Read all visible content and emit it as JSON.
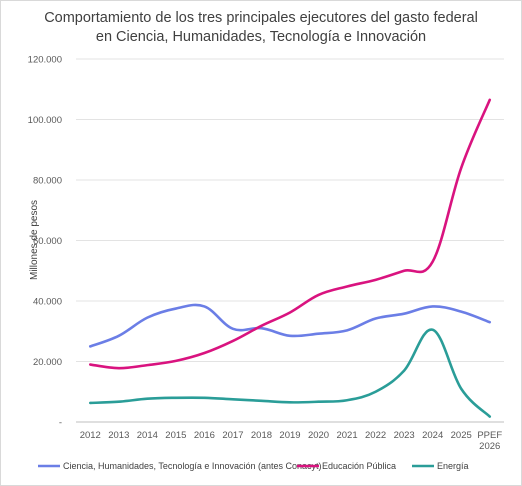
{
  "chart_data": {
    "type": "line",
    "title_lines": [
      "Comportamiento de los tres principales ejecutores del gasto federal",
      "en Ciencia, Humanidades, Tecnología e Innovación"
    ],
    "ylabel": "Millones de pesos",
    "xlabel": "",
    "ylim": [
      0,
      120000
    ],
    "yticks": [
      {
        "value": 0,
        "label": "-"
      },
      {
        "value": 20000,
        "label": "20.000"
      },
      {
        "value": 40000,
        "label": "40.000"
      },
      {
        "value": 60000,
        "label": "60.000"
      },
      {
        "value": 80000,
        "label": "80.000"
      },
      {
        "value": 100000,
        "label": "100.000"
      },
      {
        "value": 120000,
        "label": "120.000"
      }
    ],
    "grid": true,
    "legend_position": "bottom",
    "categories": [
      [
        "2012"
      ],
      [
        "2013"
      ],
      [
        "2014"
      ],
      [
        "2015"
      ],
      [
        "2016"
      ],
      [
        "2017"
      ],
      [
        "2018"
      ],
      [
        "2019"
      ],
      [
        "2020"
      ],
      [
        "2021"
      ],
      [
        "2022"
      ],
      [
        "2023"
      ],
      [
        "2024"
      ],
      [
        "2025"
      ],
      [
        "PPEF",
        "2026"
      ]
    ],
    "series": [
      {
        "name": "Ciencia, Humanidades, Tecnología e Innovación (antes Conacyt)",
        "color": "#6b7ee6",
        "values": [
          25000,
          28500,
          34500,
          37500,
          38200,
          30800,
          31000,
          28500,
          29200,
          30300,
          34200,
          35800,
          38200,
          36500,
          33000
        ]
      },
      {
        "name": "Educación Pública",
        "color": "#d9137f",
        "values": [
          19000,
          17800,
          18800,
          20200,
          22800,
          26800,
          31800,
          36200,
          42000,
          44800,
          47000,
          50000,
          53000,
          84000,
          106500
        ]
      },
      {
        "name": "Energía",
        "color": "#2a9d98",
        "values": [
          6300,
          6700,
          7700,
          8000,
          8000,
          7500,
          7000,
          6500,
          6700,
          7200,
          10000,
          17000,
          30500,
          11000,
          1800
        ]
      }
    ]
  }
}
